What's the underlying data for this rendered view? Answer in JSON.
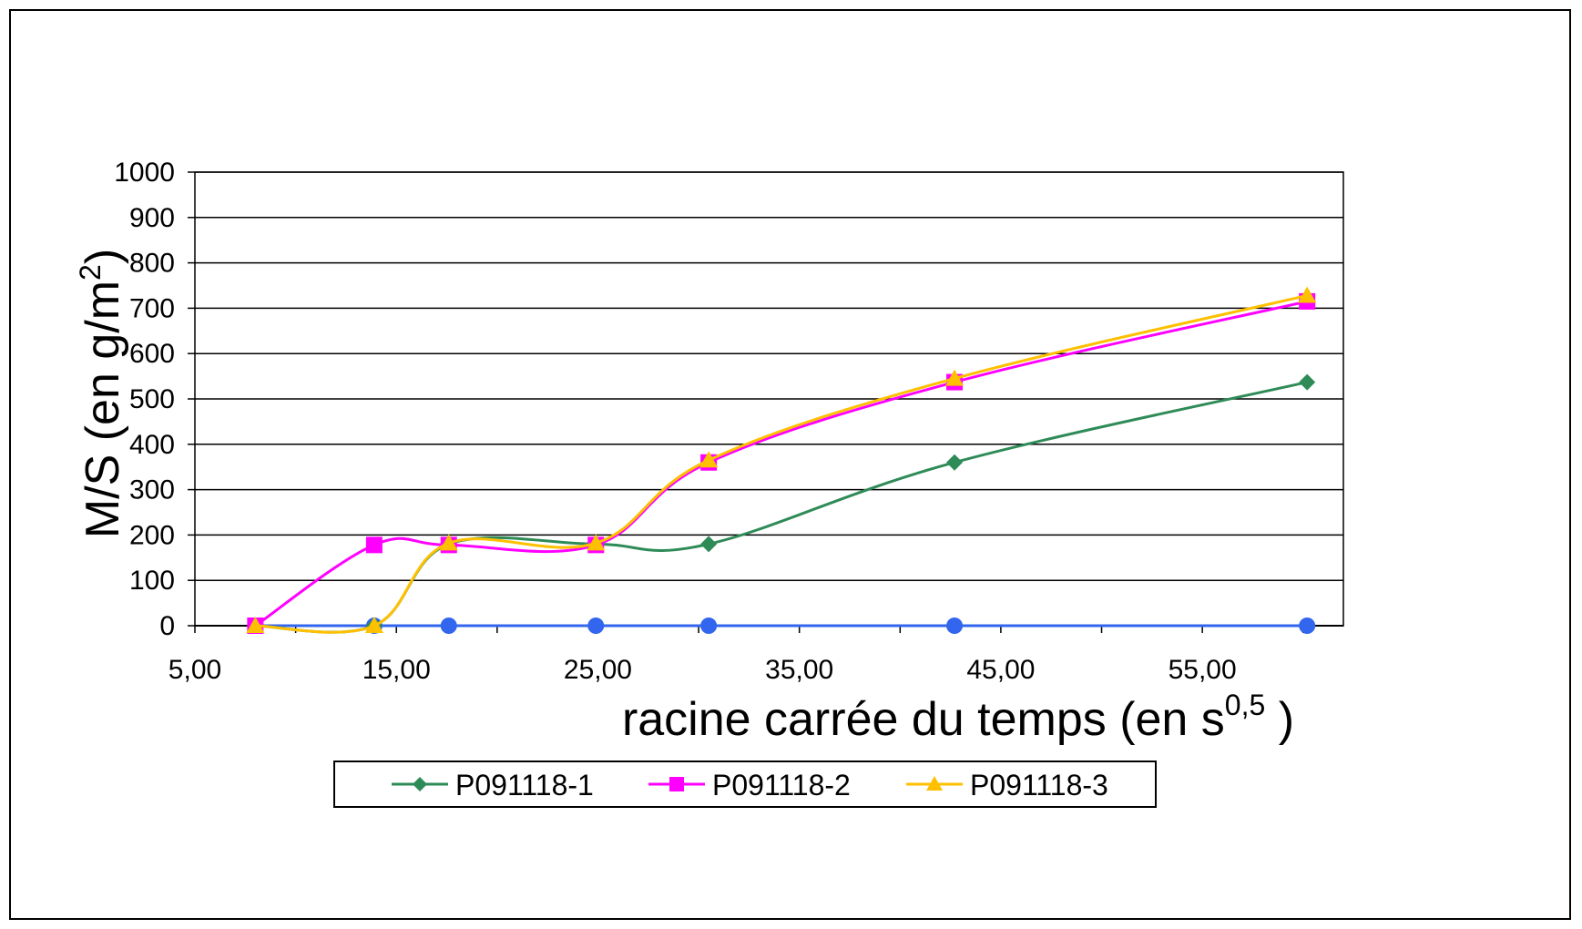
{
  "chart_data": {
    "type": "line",
    "title": "",
    "xlabel": "racine carrée du temps (en s",
    "xlabel_sup": "0,5",
    "xlabel_end": " )",
    "ylabel": "M/S (en g/m",
    "ylabel_sup": "2",
    "ylabel_end": ")",
    "xlim": [
      5,
      62
    ],
    "ylim": [
      0,
      1000
    ],
    "xticks": [
      5,
      15,
      25,
      35,
      45,
      55
    ],
    "xtick_labels": [
      "5,00",
      "15,00",
      "25,00",
      "35,00",
      "45,00",
      "55,00"
    ],
    "yticks": [
      0,
      100,
      200,
      300,
      400,
      500,
      600,
      700,
      800,
      900,
      1000
    ],
    "ytick_labels": [
      "0",
      "100",
      "200",
      "300",
      "400",
      "500",
      "600",
      "700",
      "800",
      "900",
      "1000"
    ],
    "grid": "horizontal",
    "legend_position": "bottom",
    "series": [
      {
        "name": "",
        "color": "#3366ee",
        "marker": "circle",
        "show_in_legend": false,
        "x": [
          8.0,
          13.9,
          17.6,
          24.9,
          30.5,
          42.7,
          60.2
        ],
        "y": [
          0,
          0,
          0,
          0,
          0,
          0,
          0
        ]
      },
      {
        "name": "P091118-1",
        "color": "#2e8b57",
        "marker": "diamond",
        "show_in_legend": true,
        "x": [
          8.0,
          13.9,
          17.6,
          24.9,
          30.5,
          42.7,
          60.2
        ],
        "y": [
          0,
          0,
          180,
          180,
          180,
          360,
          537
        ]
      },
      {
        "name": "P091118-2",
        "color": "#ff00ff",
        "marker": "square",
        "show_in_legend": true,
        "x": [
          8.0,
          13.9,
          17.6,
          24.9,
          30.5,
          42.7,
          60.2
        ],
        "y": [
          0,
          178,
          178,
          178,
          360,
          537,
          715
        ]
      },
      {
        "name": "P091118-3",
        "color": "#ffc000",
        "marker": "triangle",
        "show_in_legend": true,
        "x": [
          8.0,
          13.9,
          17.6,
          24.9,
          30.5,
          42.7,
          60.2
        ],
        "y": [
          0,
          0,
          182,
          182,
          365,
          545,
          728
        ]
      }
    ]
  }
}
